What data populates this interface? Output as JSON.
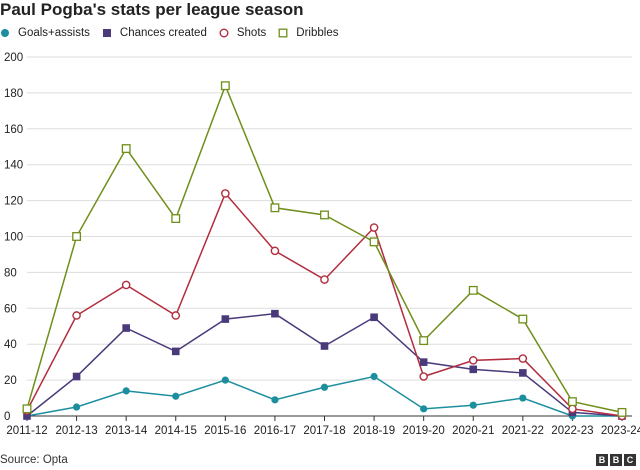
{
  "chart_data": {
    "type": "line",
    "title": "Paul Pogba's stats per league season",
    "categories": [
      "2011-12",
      "2012-13",
      "2013-14",
      "2014-15",
      "2015-16",
      "2016-17",
      "2017-18",
      "2018-19",
      "2019-20",
      "2020-21",
      "2021-22",
      "2022-23",
      "2023-24"
    ],
    "ylim": [
      0,
      200
    ],
    "yticks": [
      0,
      20,
      40,
      60,
      80,
      100,
      120,
      140,
      160,
      180,
      200
    ],
    "grid": "horizontal",
    "legend_position": "top-left",
    "series": [
      {
        "name": "Goals+assists",
        "marker": "filled-circle",
        "color": "#1c8f9f",
        "values": [
          0,
          5,
          14,
          11,
          20,
          9,
          16,
          22,
          4,
          6,
          10,
          0,
          0
        ]
      },
      {
        "name": "Chances created",
        "marker": "filled-square",
        "color": "#4a3a7a",
        "values": [
          0,
          22,
          49,
          36,
          54,
          57,
          39,
          55,
          30,
          26,
          24,
          2,
          0
        ]
      },
      {
        "name": "Shots",
        "marker": "hollow-circle",
        "color": "#b22d3e",
        "values": [
          3,
          56,
          73,
          56,
          124,
          92,
          76,
          105,
          22,
          31,
          32,
          4,
          0
        ]
      },
      {
        "name": "Dribbles",
        "marker": "hollow-square",
        "color": "#6f8f1a",
        "values": [
          4,
          100,
          149,
          110,
          184,
          116,
          112,
          97,
          42,
          70,
          54,
          8,
          2
        ]
      }
    ]
  },
  "footer": {
    "source": "Source: Opta",
    "logo_letters": [
      "B",
      "B",
      "C"
    ]
  }
}
